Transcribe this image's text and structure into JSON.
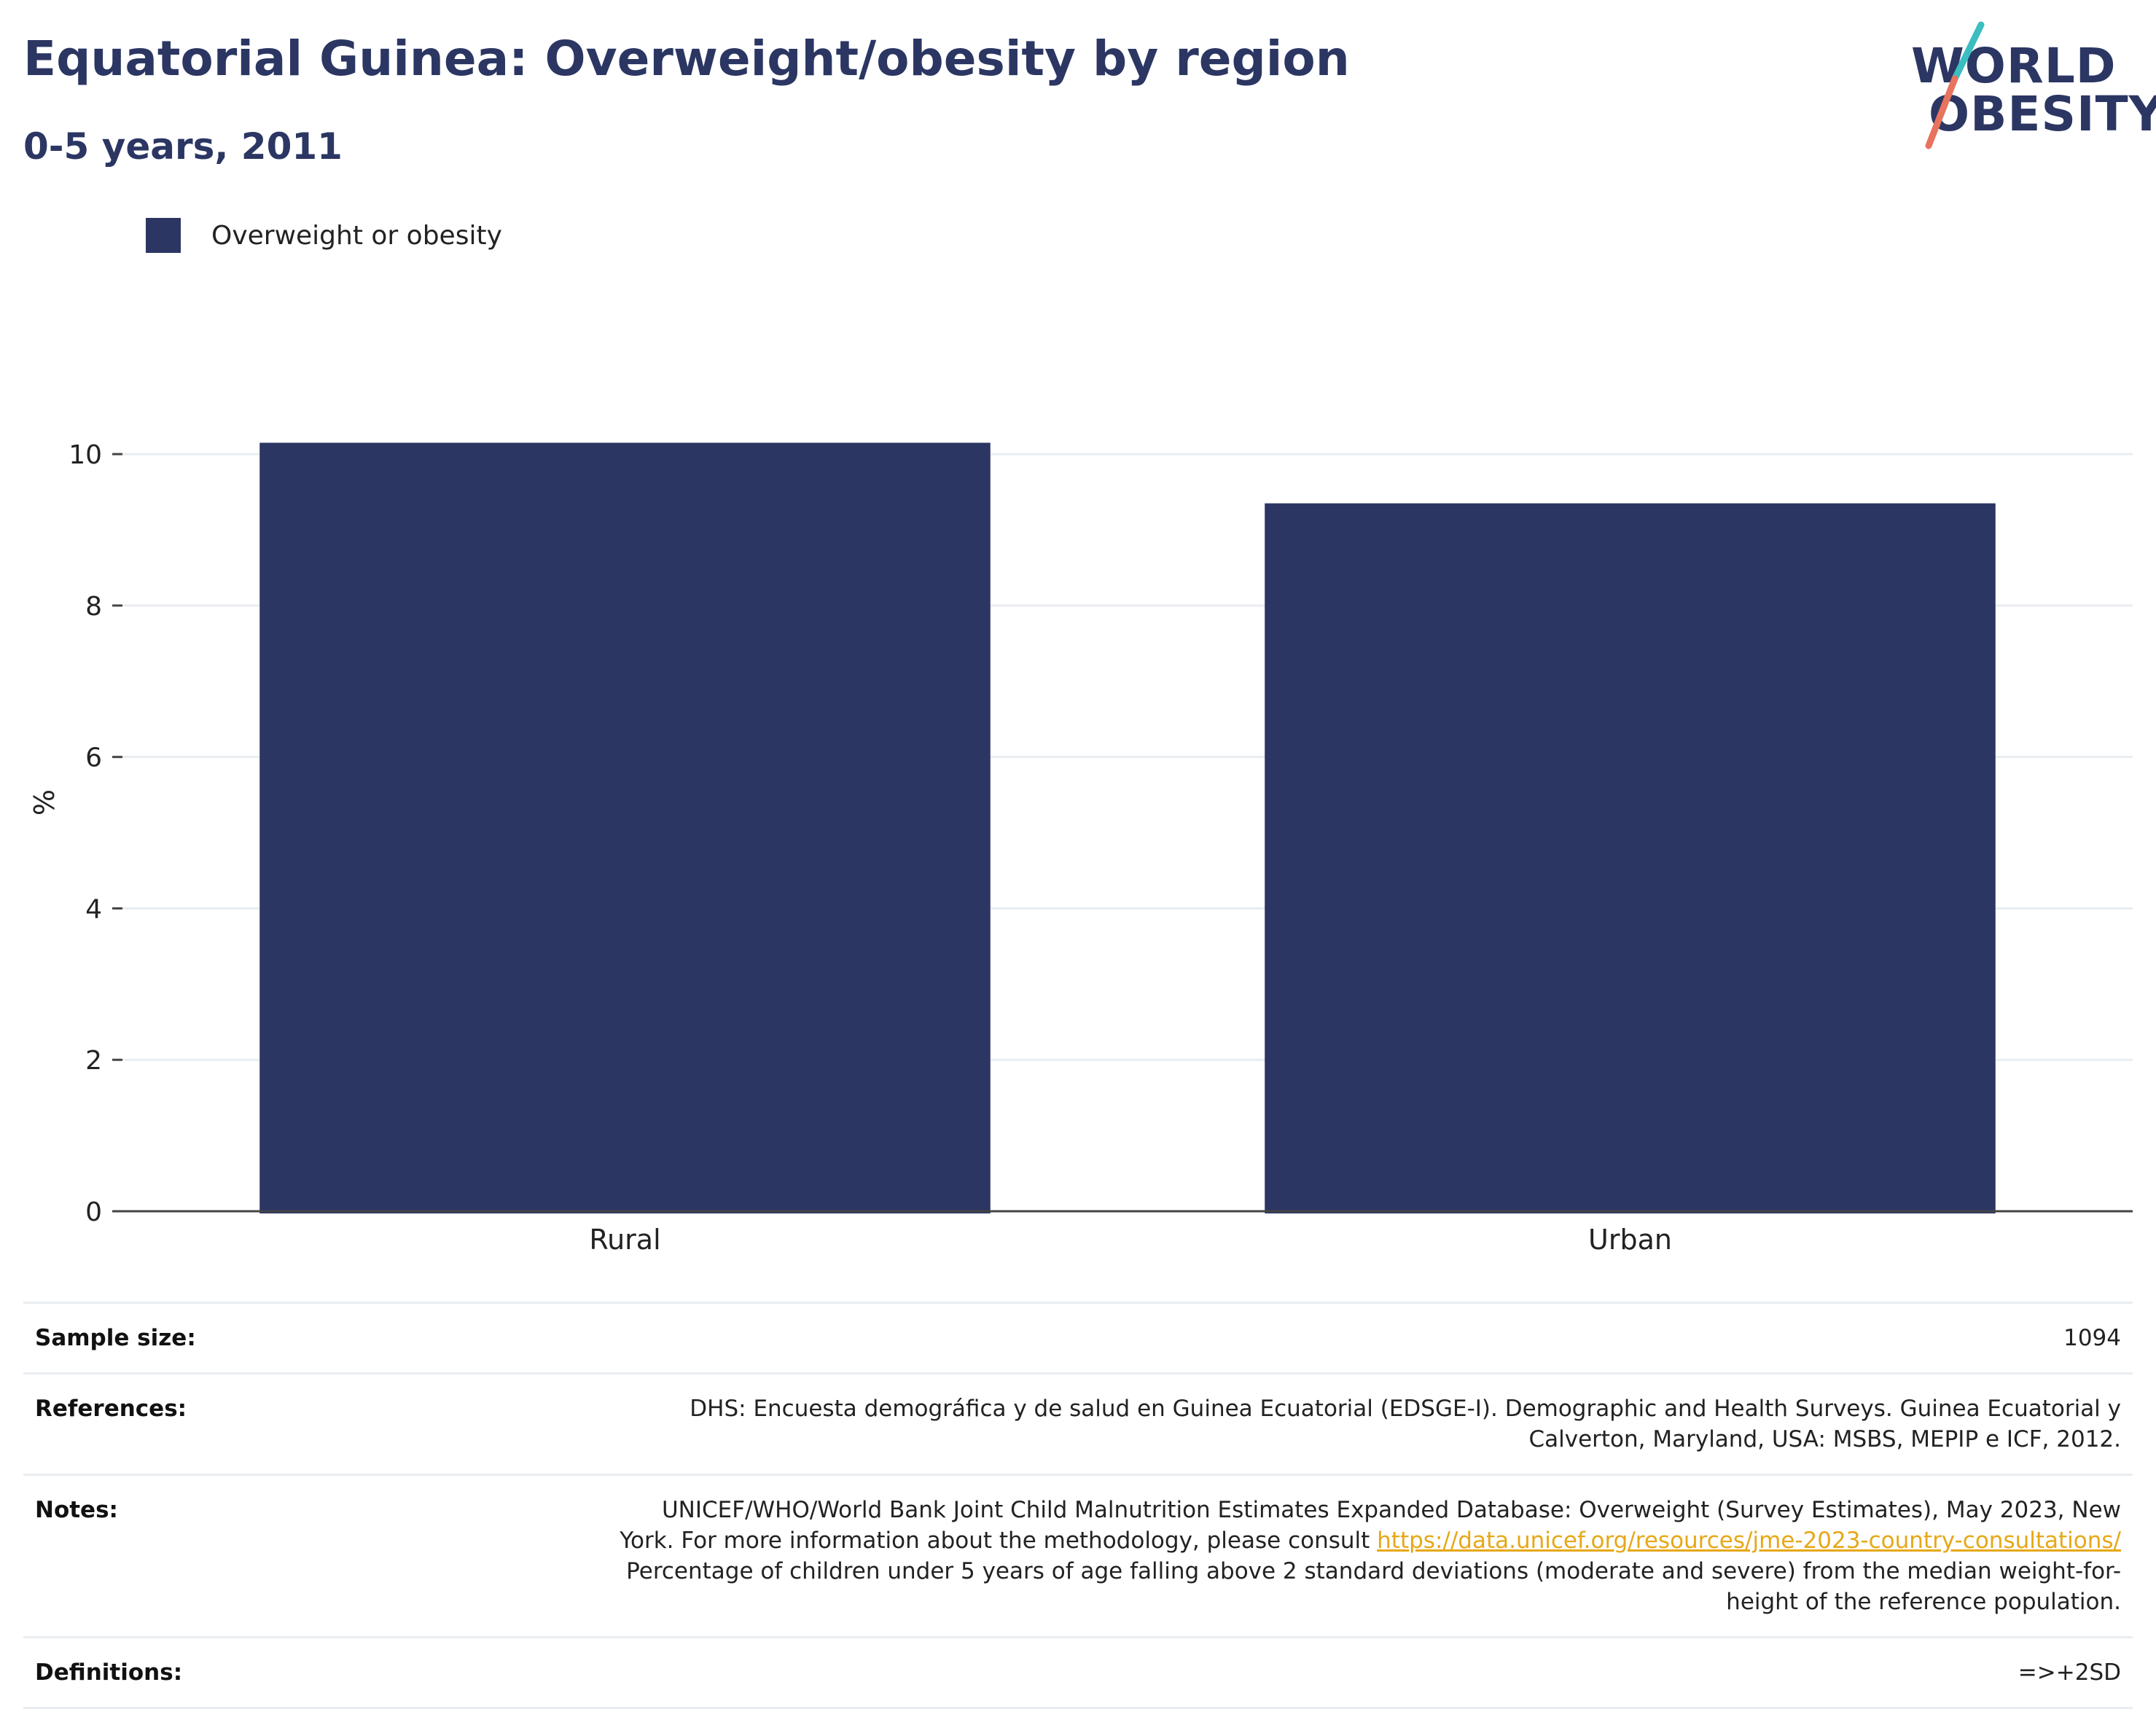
{
  "header": {
    "title": "Equatorial Guinea: Overweight/obesity by region",
    "subtitle": "0-5 years, 2011"
  },
  "logo": {
    "line1": "WORLD",
    "line2": "OBESITY",
    "colors": {
      "text": "#2b3663",
      "slash_top": "#3bbdc1",
      "slash_bottom": "#e8735f"
    }
  },
  "legend": {
    "label": "Overweight or obesity",
    "color": "#2b3663"
  },
  "chart_data": {
    "type": "bar",
    "categories": [
      "Rural",
      "Urban"
    ],
    "series": [
      {
        "name": "Overweight or obesity",
        "values": [
          10.15,
          9.35
        ],
        "color": "#2b3663"
      }
    ],
    "ylabel": "%",
    "xlabel": "",
    "ylim": [
      0,
      10.8
    ],
    "yticks": [
      0,
      2,
      4,
      6,
      8,
      10
    ],
    "grid": true,
    "legend_position": "top-left"
  },
  "info": {
    "sample_size": {
      "label": "Sample size:",
      "value": "1094"
    },
    "references": {
      "label": "References:",
      "value": "DHS: Encuesta demográfica y de salud en Guinea Ecuatorial (EDSGE-I). Demographic and Health Surveys. Guinea Ecuatorial y Calverton, Maryland, USA: MSBS, MEPIP e ICF, 2012."
    },
    "notes": {
      "label": "Notes:",
      "text_before": "UNICEF/WHO/World Bank Joint Child Malnutrition Estimates Expanded Database: Overweight (Survey Estimates), May 2023, New York. For more information about the methodology, please consult ",
      "link": "https://data.unicef.org/resources/jme-2023-country-consultations/",
      "text_after": " Percentage of children under 5 years of age falling above 2 standard deviations (moderate and severe) from the median weight-for-height of the reference population."
    },
    "definitions": {
      "label": "Definitions:",
      "value": "=>+2SD"
    }
  }
}
